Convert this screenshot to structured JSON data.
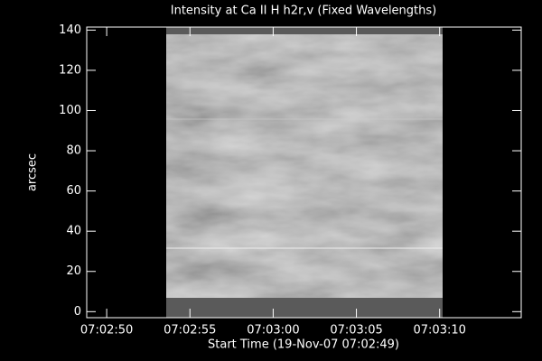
{
  "chart_data": {
    "type": "image",
    "title": "Intensity at Ca II H h2r,v (Fixed Wavelengths)",
    "x_label": "Start Time (19-Nov-07 07:02:49)",
    "y_label": "arcsec",
    "xlim": [
      48.8,
      74.9
    ],
    "xticks": [
      {
        "value": 50,
        "label": "07:02:50"
      },
      {
        "value": 55,
        "label": "07:02:55"
      },
      {
        "value": 60,
        "label": "07:03:00"
      },
      {
        "value": 65,
        "label": "07:03:05"
      },
      {
        "value": 70,
        "label": "07:03:10"
      }
    ],
    "ylim": [
      -3,
      141.5
    ],
    "yticks": [
      0,
      20,
      40,
      60,
      80,
      100,
      120,
      140
    ]
  }
}
